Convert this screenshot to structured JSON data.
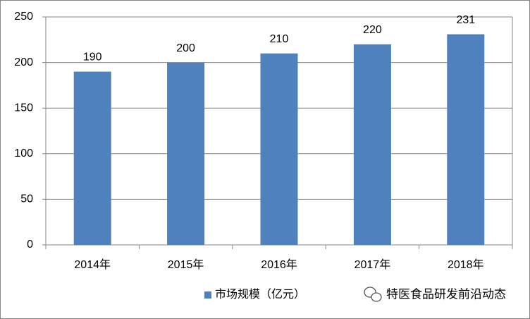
{
  "chart_data": {
    "type": "bar",
    "categories": [
      "2014年",
      "2015年",
      "2016年",
      "2017年",
      "2018年"
    ],
    "series": [
      {
        "name": "市场规模（亿元）",
        "color": "#4f81bd",
        "values": [
          190,
          200,
          210,
          220,
          231
        ]
      }
    ],
    "ylim": [
      0,
      250
    ],
    "yticks": [
      0,
      50,
      100,
      150,
      200,
      250
    ],
    "grid": true,
    "legend": "bottom",
    "watermark": "特医食品研发前沿动态"
  }
}
